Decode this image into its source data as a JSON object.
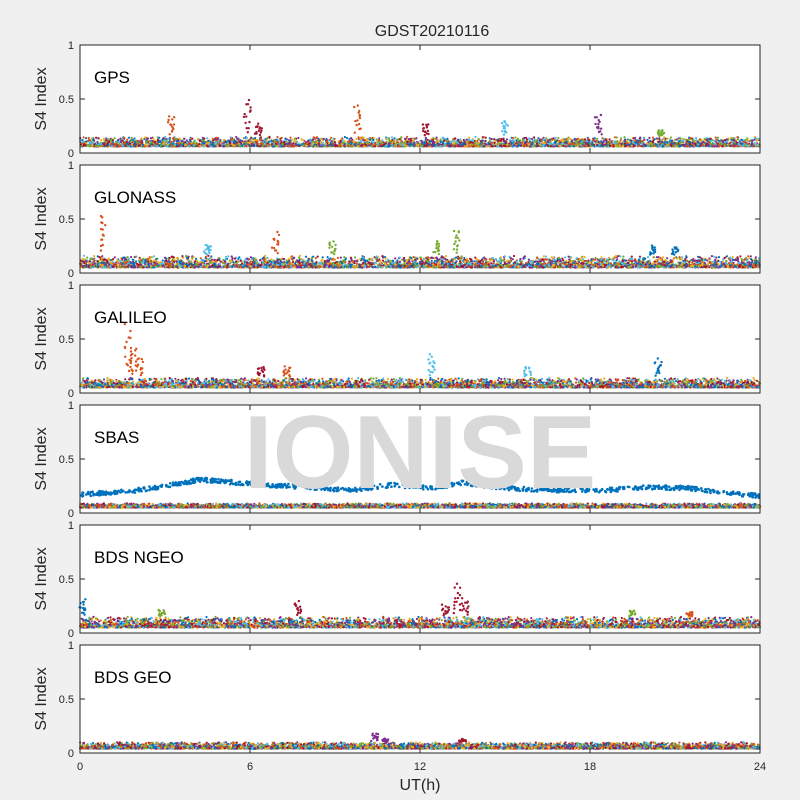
{
  "figure": {
    "title": "GDST20210116",
    "watermark": "IONISE"
  },
  "palette": [
    "#0072BD",
    "#D95319",
    "#EDB120",
    "#7E2F8E",
    "#77AC30",
    "#4DBEEE",
    "#A2142F"
  ],
  "chart_data": [
    {
      "type": "scatter",
      "panel": "GPS",
      "ylabel": "S4 Index",
      "xlabel": "",
      "xlim": [
        0,
        24
      ],
      "ylim": [
        0,
        1
      ],
      "yticks": [
        0,
        0.5,
        1
      ],
      "xticks": [
        0,
        6,
        12,
        18,
        24
      ],
      "show_xticklabels": false,
      "baseline_range": [
        0.06,
        0.15
      ],
      "n_series": 7,
      "spikes": [
        {
          "x": 3.2,
          "y": 0.37,
          "series": 1
        },
        {
          "x": 5.9,
          "y": 0.53,
          "series": 6
        },
        {
          "x": 6.3,
          "y": 0.28,
          "series": 6
        },
        {
          "x": 9.8,
          "y": 0.47,
          "series": 1
        },
        {
          "x": 12.2,
          "y": 0.28,
          "series": 6
        },
        {
          "x": 15.0,
          "y": 0.32,
          "series": 5
        },
        {
          "x": 18.3,
          "y": 0.36,
          "series": 3
        },
        {
          "x": 20.5,
          "y": 0.22,
          "series": 4
        }
      ]
    },
    {
      "type": "scatter",
      "panel": "GLONASS",
      "ylabel": "S4 Index",
      "xlabel": "",
      "xlim": [
        0,
        24
      ],
      "ylim": [
        0,
        1
      ],
      "yticks": [
        0,
        0.5,
        1
      ],
      "xticks": [
        0,
        6,
        12,
        18,
        24
      ],
      "show_xticklabels": false,
      "baseline_range": [
        0.05,
        0.16
      ],
      "n_series": 7,
      "spikes": [
        {
          "x": 0.85,
          "y": 0.58,
          "series": 1
        },
        {
          "x": 4.5,
          "y": 0.28,
          "series": 5
        },
        {
          "x": 6.9,
          "y": 0.38,
          "series": 1
        },
        {
          "x": 8.9,
          "y": 0.3,
          "series": 4
        },
        {
          "x": 12.6,
          "y": 0.3,
          "series": 4
        },
        {
          "x": 13.3,
          "y": 0.43,
          "series": 4
        },
        {
          "x": 20.2,
          "y": 0.26,
          "series": 0
        },
        {
          "x": 21.0,
          "y": 0.25,
          "series": 0
        }
      ]
    },
    {
      "type": "scatter",
      "panel": "GALILEO",
      "ylabel": "S4 Index",
      "xlabel": "",
      "xlim": [
        0,
        24
      ],
      "ylim": [
        0,
        1
      ],
      "yticks": [
        0,
        0.5,
        1
      ],
      "xticks": [
        0,
        6,
        12,
        18,
        24
      ],
      "show_xticklabels": false,
      "baseline_range": [
        0.05,
        0.14
      ],
      "n_series": 7,
      "spikes": [
        {
          "x": 1.7,
          "y": 0.66,
          "series": 1
        },
        {
          "x": 1.9,
          "y": 0.45,
          "series": 1
        },
        {
          "x": 2.1,
          "y": 0.35,
          "series": 1
        },
        {
          "x": 6.4,
          "y": 0.26,
          "series": 6
        },
        {
          "x": 7.3,
          "y": 0.25,
          "series": 1
        },
        {
          "x": 12.4,
          "y": 0.37,
          "series": 5
        },
        {
          "x": 15.8,
          "y": 0.26,
          "series": 5
        },
        {
          "x": 20.4,
          "y": 0.33,
          "series": 0
        }
      ]
    },
    {
      "type": "scatter",
      "panel": "SBAS",
      "ylabel": "S4 Index",
      "xlabel": "",
      "xlim": [
        0,
        24
      ],
      "ylim": [
        0,
        1
      ],
      "yticks": [
        0,
        0.5,
        1
      ],
      "xticks": [
        0,
        6,
        12,
        18,
        24
      ],
      "show_xticklabels": false,
      "baseline_range": [
        0.05,
        0.09
      ],
      "n_series": 7,
      "band": {
        "series": 0,
        "points": [
          [
            0,
            0.17
          ],
          [
            2,
            0.21
          ],
          [
            3.5,
            0.27
          ],
          [
            4.2,
            0.31
          ],
          [
            6,
            0.27
          ],
          [
            8,
            0.24
          ],
          [
            9.5,
            0.21
          ],
          [
            11,
            0.26
          ],
          [
            12.5,
            0.23
          ],
          [
            13.5,
            0.28
          ],
          [
            15,
            0.23
          ],
          [
            17,
            0.21
          ],
          [
            18.5,
            0.21
          ],
          [
            20,
            0.24
          ],
          [
            21.5,
            0.23
          ],
          [
            23,
            0.18
          ],
          [
            24,
            0.16
          ]
        ]
      },
      "spikes": []
    },
    {
      "type": "scatter",
      "panel": "BDS NGEO",
      "ylabel": "S4 Index",
      "xlabel": "",
      "xlim": [
        0,
        24
      ],
      "ylim": [
        0,
        1
      ],
      "yticks": [
        0,
        0.5,
        1
      ],
      "xticks": [
        0,
        6,
        12,
        18,
        24
      ],
      "show_xticklabels": false,
      "baseline_range": [
        0.05,
        0.15
      ],
      "n_series": 7,
      "spikes": [
        {
          "x": 0.1,
          "y": 0.32,
          "series": 0
        },
        {
          "x": 2.9,
          "y": 0.22,
          "series": 4
        },
        {
          "x": 7.7,
          "y": 0.31,
          "series": 6
        },
        {
          "x": 12.9,
          "y": 0.27,
          "series": 6
        },
        {
          "x": 13.3,
          "y": 0.46,
          "series": 6
        },
        {
          "x": 13.6,
          "y": 0.33,
          "series": 6
        },
        {
          "x": 19.5,
          "y": 0.22,
          "series": 4
        },
        {
          "x": 21.5,
          "y": 0.2,
          "series": 1
        }
      ]
    },
    {
      "type": "scatter",
      "panel": "BDS GEO",
      "ylabel": "S4 Index",
      "xlabel": "UT(h)",
      "xlim": [
        0,
        24
      ],
      "ylim": [
        0,
        1
      ],
      "yticks": [
        0,
        0.5,
        1
      ],
      "xticks": [
        0,
        6,
        12,
        18,
        24
      ],
      "show_xticklabels": true,
      "baseline_range": [
        0.04,
        0.1
      ],
      "n_series": 7,
      "spikes": [
        {
          "x": 10.4,
          "y": 0.19,
          "series": 3
        },
        {
          "x": 10.8,
          "y": 0.14,
          "series": 3
        },
        {
          "x": 13.5,
          "y": 0.13,
          "series": 6
        }
      ]
    }
  ]
}
